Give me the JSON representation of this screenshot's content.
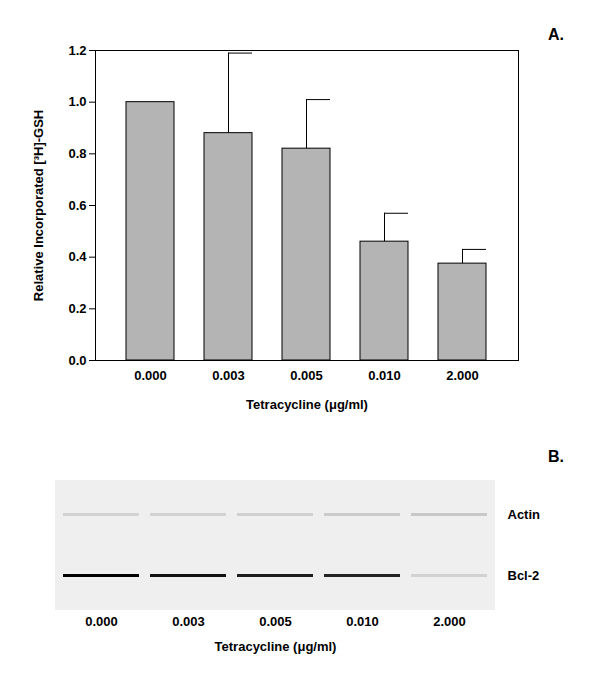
{
  "chart_data": [
    {
      "type": "bar",
      "title": "A.",
      "categories": [
        "0.000",
        "0.003",
        "0.005",
        "0.010",
        "2.000"
      ],
      "values": [
        1.0,
        0.88,
        0.82,
        0.46,
        0.375
      ],
      "errors": [
        0,
        0.31,
        0.19,
        0.11,
        0.055
      ],
      "color": "#b4b4b4",
      "xlabel": "Tetracycline (μg/ml)",
      "ylabel": "Relative Incorporated [³H]-GSH",
      "ylim": [
        0,
        1.2
      ],
      "yticks": [
        {
          "value": 0,
          "label": "0.0"
        },
        {
          "value": 0.2,
          "label": "0.2"
        },
        {
          "value": 0.4,
          "label": "0.4"
        },
        {
          "value": 0.6,
          "label": "0.6"
        },
        {
          "value": 0.8,
          "label": "0.8"
        },
        {
          "value": 1.0,
          "label": "1.0"
        },
        {
          "value": 1.2,
          "label": "1.2"
        }
      ],
      "grid": false
    },
    {
      "type": "blot",
      "title": "B.",
      "categories": [
        "0.000",
        "0.003",
        "0.005",
        "0.010",
        "2.000"
      ],
      "xlabel": "Tetracycline (μg/ml)",
      "series": [
        {
          "name": "Actin",
          "color": "#000000",
          "values": [
            0.12,
            0.12,
            0.13,
            0.15,
            0.16
          ]
        },
        {
          "name": "Bcl-2",
          "color": "#000000",
          "values": [
            1.0,
            0.93,
            0.88,
            0.85,
            0.12
          ]
        }
      ],
      "intensity_range": [
        0,
        1
      ]
    }
  ]
}
